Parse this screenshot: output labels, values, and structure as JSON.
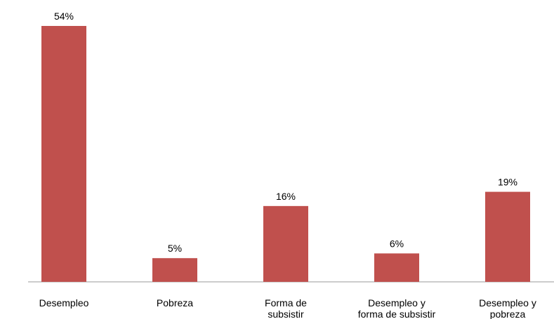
{
  "chart_data": {
    "type": "bar",
    "categories": [
      "Desempleo",
      "Pobreza",
      "Forma de\nsubsistir",
      "Desempleo y\nforma de subsistir",
      "Desempleo y\npobreza"
    ],
    "values": [
      54,
      5,
      16,
      6,
      19
    ],
    "value_labels": [
      "54%",
      "5%",
      "16%",
      "6%",
      "19%"
    ],
    "color": "#c0504d"
  }
}
